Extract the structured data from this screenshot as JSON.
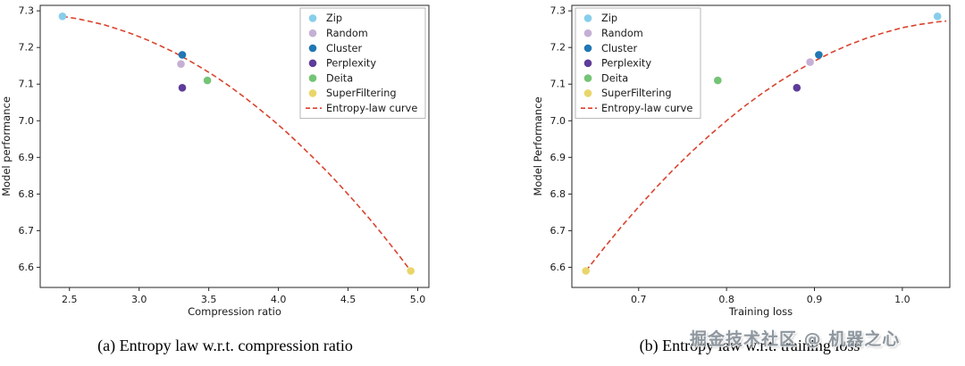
{
  "page": {
    "background": "#ffffff",
    "watermark": "掘金技术社区 @ 机器之心"
  },
  "palette": {
    "axis": "#262626",
    "text": "#1a1a1a",
    "legend_border": "#b0b0b0",
    "curve_red": "#d9442f"
  },
  "chart_data": [
    {
      "type": "scatter",
      "caption": "(a) Entropy law w.r.t. compression ratio",
      "xlabel": "Compression ratio",
      "ylabel": "Model performance",
      "xlim": [
        2.29,
        5.08
      ],
      "ylim": [
        6.545,
        7.315
      ],
      "xticks": [
        2.5,
        3.0,
        3.5,
        4.0,
        4.5,
        5.0
      ],
      "xtick_labels": [
        "2.5",
        "3.0",
        "3.5",
        "4.0",
        "4.5",
        "5.0"
      ],
      "yticks": [
        6.6,
        6.7,
        6.8,
        6.9,
        7.0,
        7.1,
        7.2,
        7.3
      ],
      "ytick_labels": [
        "6.6",
        "6.7",
        "6.8",
        "6.9",
        "7.0",
        "7.1",
        "7.2",
        "7.3"
      ],
      "grid": false,
      "legend_position": "upper right",
      "series": [
        {
          "name": "Zip",
          "color": "#87ceeb",
          "points": [
            [
              2.45,
              7.285
            ]
          ]
        },
        {
          "name": "Random",
          "color": "#c5b0d5",
          "points": [
            [
              3.3,
              7.155
            ]
          ]
        },
        {
          "name": "Cluster",
          "color": "#2077b4",
          "points": [
            [
              3.31,
              7.18
            ]
          ]
        },
        {
          "name": "Perplexity",
          "color": "#5e3c99",
          "points": [
            [
              3.31,
              7.09
            ]
          ]
        },
        {
          "name": "Deita",
          "color": "#74c476",
          "points": [
            [
              3.49,
              7.11
            ]
          ]
        },
        {
          "name": "SuperFiltering",
          "color": "#e9d66b",
          "points": [
            [
              4.95,
              6.59
            ]
          ]
        }
      ],
      "curve": {
        "name": "Entropy-law curve",
        "color": "#d9442f",
        "style": "dashed",
        "points": [
          [
            2.45,
            7.285
          ],
          [
            2.55,
            7.279
          ],
          [
            2.65,
            7.271
          ],
          [
            2.75,
            7.262
          ],
          [
            2.85,
            7.25
          ],
          [
            2.95,
            7.237
          ],
          [
            3.05,
            7.222
          ],
          [
            3.15,
            7.205
          ],
          [
            3.25,
            7.187
          ],
          [
            3.35,
            7.166
          ],
          [
            3.45,
            7.144
          ],
          [
            3.55,
            7.12
          ],
          [
            3.65,
            7.094
          ],
          [
            3.75,
            7.066
          ],
          [
            3.85,
            7.036
          ],
          [
            3.95,
            7.005
          ],
          [
            4.05,
            6.972
          ],
          [
            4.15,
            6.936
          ],
          [
            4.25,
            6.899
          ],
          [
            4.35,
            6.861
          ],
          [
            4.45,
            6.82
          ],
          [
            4.55,
            6.778
          ],
          [
            4.65,
            6.734
          ],
          [
            4.75,
            6.688
          ],
          [
            4.85,
            6.64
          ],
          [
            4.95,
            6.59
          ]
        ]
      }
    },
    {
      "type": "scatter",
      "caption": "(b) Entropy law w.r.t. training loss",
      "xlabel": "Training loss",
      "ylabel": "Model Performance",
      "xlim": [
        0.624,
        1.054
      ],
      "ylim": [
        6.545,
        7.315
      ],
      "xticks": [
        0.7,
        0.8,
        0.9,
        1.0
      ],
      "xtick_labels": [
        "0.7",
        "0.8",
        "0.9",
        "1.0"
      ],
      "yticks": [
        6.6,
        6.7,
        6.8,
        6.9,
        7.0,
        7.1,
        7.2,
        7.3
      ],
      "ytick_labels": [
        "6.6",
        "6.7",
        "6.8",
        "6.9",
        "7.0",
        "7.1",
        "7.2",
        "7.3"
      ],
      "grid": false,
      "legend_position": "upper left",
      "series": [
        {
          "name": "Zip",
          "color": "#87ceeb",
          "points": [
            [
              1.04,
              7.285
            ]
          ]
        },
        {
          "name": "Random",
          "color": "#c5b0d5",
          "points": [
            [
              0.895,
              7.16
            ]
          ]
        },
        {
          "name": "Cluster",
          "color": "#2077b4",
          "points": [
            [
              0.905,
              7.18
            ]
          ]
        },
        {
          "name": "Perplexity",
          "color": "#5e3c99",
          "points": [
            [
              0.88,
              7.09
            ]
          ]
        },
        {
          "name": "Deita",
          "color": "#74c476",
          "points": [
            [
              0.79,
              7.11
            ]
          ]
        },
        {
          "name": "SuperFiltering",
          "color": "#e9d66b",
          "points": [
            [
              0.64,
              6.59
            ]
          ]
        }
      ],
      "curve": {
        "name": "Entropy-law curve",
        "color": "#d9442f",
        "style": "dashed",
        "points": [
          [
            0.64,
            6.59
          ],
          [
            0.66,
            6.651
          ],
          [
            0.68,
            6.71
          ],
          [
            0.7,
            6.765
          ],
          [
            0.72,
            6.818
          ],
          [
            0.74,
            6.868
          ],
          [
            0.76,
            6.915
          ],
          [
            0.78,
            6.959
          ],
          [
            0.8,
            7.0
          ],
          [
            0.82,
            7.039
          ],
          [
            0.84,
            7.074
          ],
          [
            0.86,
            7.107
          ],
          [
            0.88,
            7.136
          ],
          [
            0.9,
            7.163
          ],
          [
            0.92,
            7.187
          ],
          [
            0.94,
            7.208
          ],
          [
            0.96,
            7.226
          ],
          [
            0.98,
            7.241
          ],
          [
            1.0,
            7.254
          ],
          [
            1.02,
            7.263
          ],
          [
            1.04,
            7.27
          ],
          [
            1.05,
            7.272
          ]
        ]
      }
    }
  ]
}
